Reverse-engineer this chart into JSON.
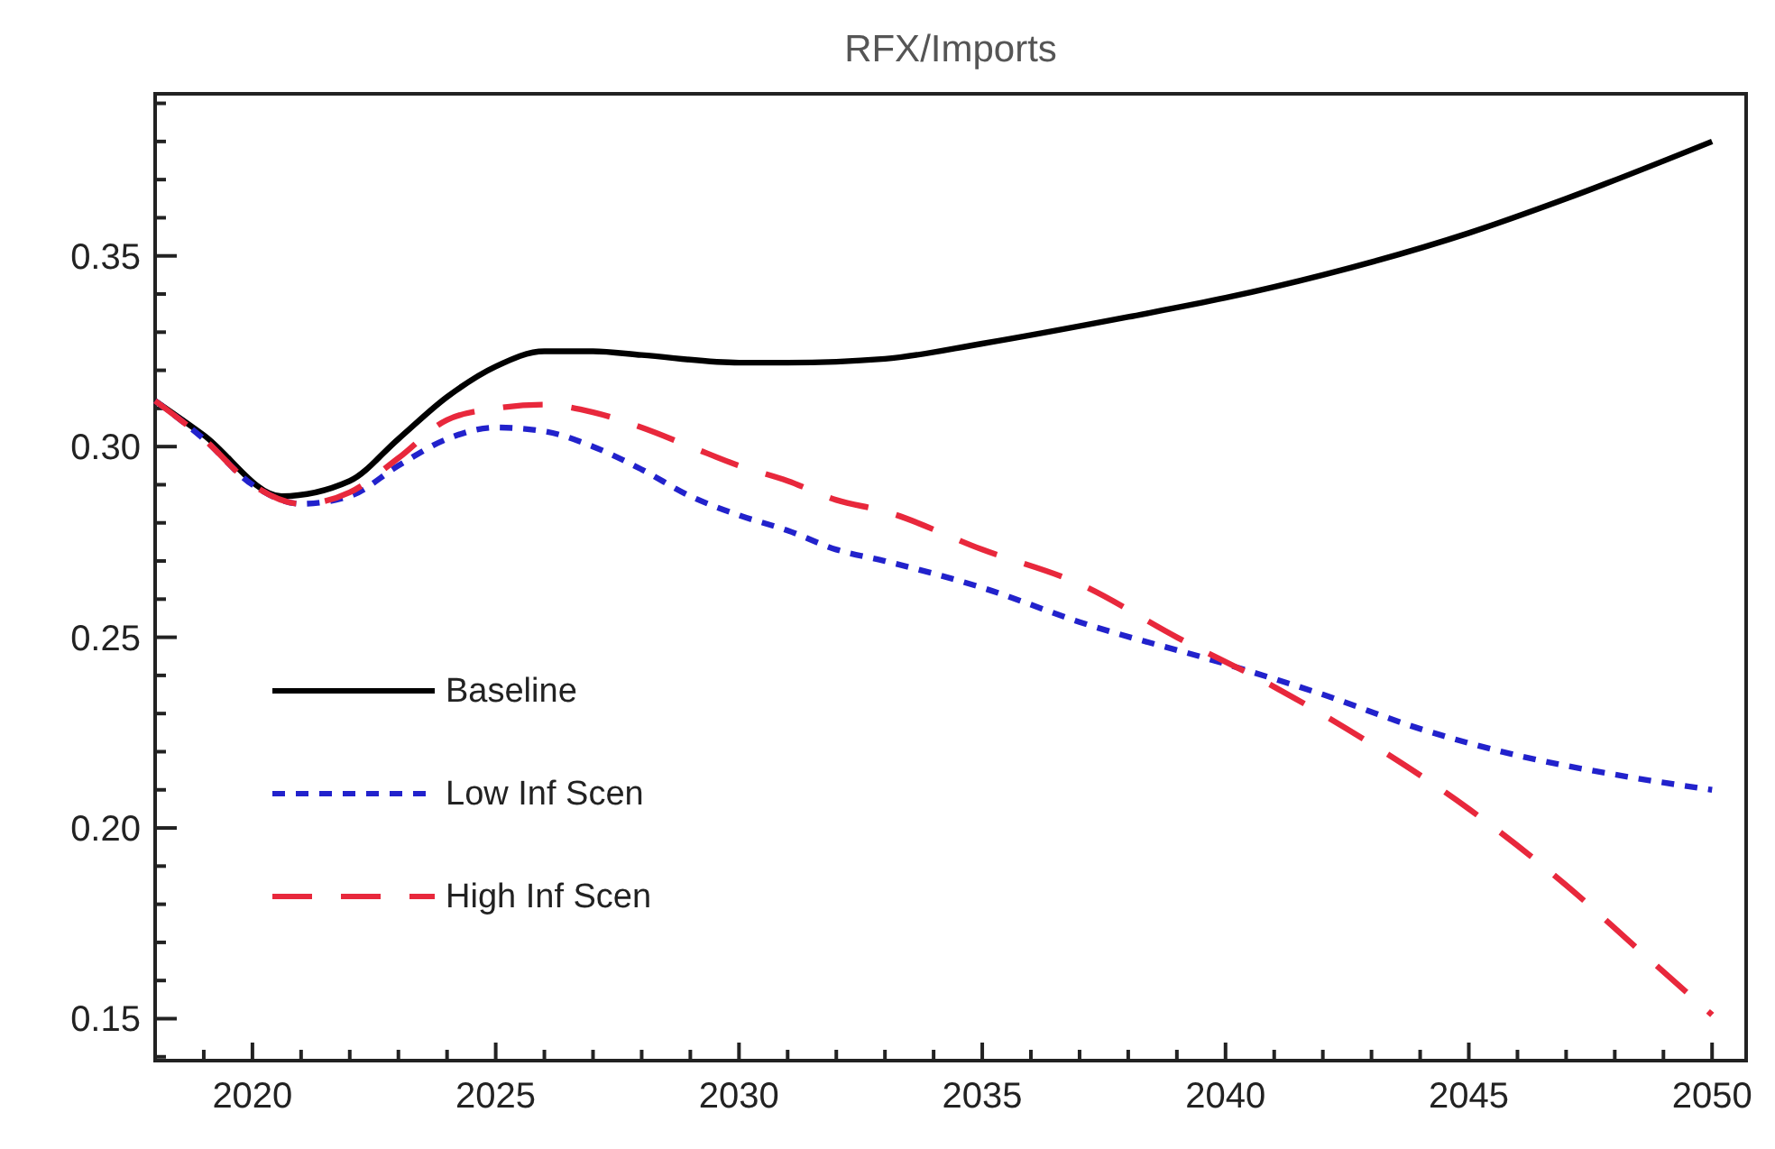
{
  "chart_data": {
    "type": "line",
    "title": "RFX/Imports",
    "xlim": [
      2018,
      2050.7
    ],
    "ylim": [
      0.139,
      0.3925
    ],
    "xticks": [
      {
        "value": 2019,
        "label": null
      },
      2020,
      {
        "value": 2021,
        "label": null
      },
      {
        "value": 2022,
        "label": null
      },
      {
        "value": 2023,
        "label": null
      },
      {
        "value": 2024,
        "label": null
      },
      2025,
      {
        "value": 2026,
        "label": null
      },
      {
        "value": 2027,
        "label": null
      },
      {
        "value": 2028,
        "label": null
      },
      {
        "value": 2029,
        "label": null
      },
      2030,
      {
        "value": 2031,
        "label": null
      },
      {
        "value": 2032,
        "label": null
      },
      {
        "value": 2033,
        "label": null
      },
      {
        "value": 2034,
        "label": null
      },
      2035,
      {
        "value": 2036,
        "label": null
      },
      {
        "value": 2037,
        "label": null
      },
      {
        "value": 2038,
        "label": null
      },
      {
        "value": 2039,
        "label": null
      },
      2040,
      {
        "value": 2041,
        "label": null
      },
      {
        "value": 2042,
        "label": null
      },
      {
        "value": 2043,
        "label": null
      },
      {
        "value": 2044,
        "label": null
      },
      2045,
      {
        "value": 2046,
        "label": null
      },
      {
        "value": 2047,
        "label": null
      },
      {
        "value": 2048,
        "label": null
      },
      {
        "value": 2049,
        "label": null
      },
      2050
    ],
    "yticks": [
      {
        "value": 0.14,
        "label": null
      },
      {
        "value": 0.15,
        "label": "0.15"
      },
      {
        "value": 0.16,
        "label": null
      },
      {
        "value": 0.17,
        "label": null
      },
      {
        "value": 0.18,
        "label": null
      },
      {
        "value": 0.19,
        "label": null
      },
      {
        "value": 0.2,
        "label": "0.20"
      },
      {
        "value": 0.21,
        "label": null
      },
      {
        "value": 0.22,
        "label": null
      },
      {
        "value": 0.23,
        "label": null
      },
      {
        "value": 0.24,
        "label": null
      },
      {
        "value": 0.25,
        "label": "0.25"
      },
      {
        "value": 0.26,
        "label": null
      },
      {
        "value": 0.27,
        "label": null
      },
      {
        "value": 0.28,
        "label": null
      },
      {
        "value": 0.29,
        "label": null
      },
      {
        "value": 0.3,
        "label": "0.30"
      },
      {
        "value": 0.31,
        "label": null
      },
      {
        "value": 0.32,
        "label": null
      },
      {
        "value": 0.33,
        "label": null
      },
      {
        "value": 0.34,
        "label": null
      },
      {
        "value": 0.35,
        "label": "0.35"
      },
      {
        "value": 0.36,
        "label": null
      },
      {
        "value": 0.37,
        "label": null
      },
      {
        "value": 0.38,
        "label": null
      },
      {
        "value": 0.39,
        "label": null
      }
    ],
    "grid": false,
    "legend": "bottom left",
    "marker": "none",
    "series": [
      {
        "name": "Baseline",
        "color": "#000000",
        "line_style": "solid",
        "x": [
          2018,
          2019,
          2020.6,
          2022,
          2023,
          2024,
          2025,
          2026,
          2027,
          2028,
          2030,
          2031,
          2033,
          2035,
          2038,
          2040,
          2042,
          2045,
          2047,
          2050
        ],
        "values": [
          0.312,
          0.303,
          0.287,
          0.291,
          0.302,
          0.313,
          0.321,
          0.325,
          0.325,
          0.324,
          0.322,
          0.322,
          0.323,
          0.327,
          0.334,
          0.339,
          0.345,
          0.356,
          0.365,
          0.38
        ]
      },
      {
        "name": "Low Inf Scen",
        "color": "#2222cc",
        "line_style": "dotted",
        "x": [
          2018,
          2019,
          2020,
          2021,
          2022,
          2023,
          2024,
          2025,
          2026,
          2027,
          2028,
          2029,
          2030,
          2031,
          2032,
          2033,
          2035,
          2037,
          2040,
          2042,
          2044,
          2046,
          2048,
          2050
        ],
        "values": [
          0.312,
          0.302,
          0.29,
          0.285,
          0.287,
          0.295,
          0.302,
          0.305,
          0.304,
          0.3,
          0.294,
          0.287,
          0.282,
          0.278,
          0.273,
          0.27,
          0.263,
          0.254,
          0.243,
          0.235,
          0.226,
          0.219,
          0.214,
          0.21
        ]
      },
      {
        "name": "High Inf Scen",
        "color": "#e8283c",
        "line_style": "dashed",
        "x": [
          2018,
          2019,
          2020,
          2021,
          2022,
          2023,
          2024,
          2025,
          2026,
          2027,
          2028,
          2029,
          2030,
          2031,
          2032,
          2033,
          2035,
          2037,
          2039,
          2041,
          2043,
          2045,
          2047,
          2048.5,
          2050
        ],
        "values": [
          0.312,
          0.302,
          0.29,
          0.285,
          0.288,
          0.297,
          0.307,
          0.31,
          0.311,
          0.309,
          0.305,
          0.3,
          0.295,
          0.291,
          0.286,
          0.283,
          0.273,
          0.264,
          0.25,
          0.237,
          0.222,
          0.205,
          0.185,
          0.168,
          0.151
        ]
      }
    ]
  }
}
